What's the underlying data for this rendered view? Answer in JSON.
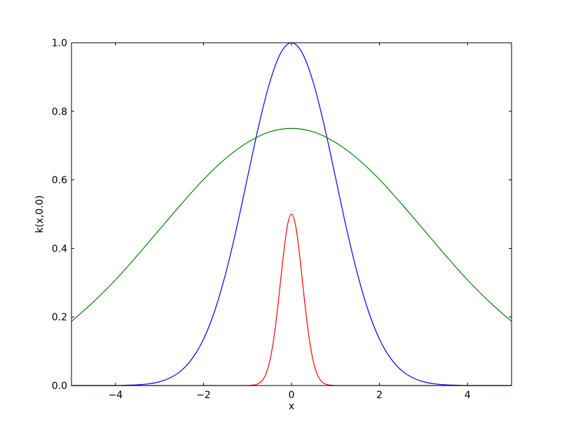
{
  "chart_data": {
    "type": "line",
    "title": "",
    "xlabel": "x",
    "ylabel": "k(x,0.0)",
    "xlim": [
      -5,
      5
    ],
    "ylim": [
      0,
      1
    ],
    "xticks": [
      -4,
      -2,
      0,
      2,
      4
    ],
    "xtick_labels": [
      "−4",
      "−2",
      "0",
      "2",
      "4"
    ],
    "yticks": [
      0,
      0.2,
      0.4,
      0.6,
      0.8,
      1.0
    ],
    "ytick_labels": [
      "0.0",
      "0.2",
      "0.4",
      "0.6",
      "0.8",
      "1.0"
    ],
    "grid": false,
    "series": [
      {
        "color": "#0000ff",
        "x": [
          -5,
          -4.75,
          -4.5,
          -4.25,
          -4,
          -3.75,
          -3.5,
          -3.25,
          -3,
          -2.75,
          -2.5,
          -2.25,
          -2,
          -1.75,
          -1.5,
          -1.25,
          -1,
          -0.75,
          -0.5,
          -0.25,
          0,
          0.25,
          0.5,
          0.75,
          1,
          1.25,
          1.5,
          1.75,
          2,
          2.25,
          2.5,
          2.75,
          3,
          3.25,
          3.5,
          3.75,
          4,
          4.25,
          4.5,
          4.75,
          5
        ],
        "y": [
          0,
          0,
          0,
          0,
          0,
          0.001,
          0.002,
          0.005,
          0.011,
          0.023,
          0.044,
          0.08,
          0.135,
          0.216,
          0.325,
          0.458,
          0.607,
          0.755,
          0.882,
          0.969,
          1,
          0.969,
          0.882,
          0.755,
          0.607,
          0.458,
          0.325,
          0.216,
          0.135,
          0.08,
          0.044,
          0.023,
          0.011,
          0.005,
          0.002,
          0.001,
          0,
          0,
          0,
          0,
          0
        ]
      },
      {
        "color": "#008000",
        "x": [
          -5,
          -4.5,
          -4,
          -3.5,
          -3,
          -2.5,
          -2,
          -1.5,
          -1,
          -0.5,
          0,
          0.5,
          1,
          1.5,
          2,
          2.5,
          3,
          3.5,
          4,
          4.5,
          5
        ],
        "y": [
          0.187,
          0.244,
          0.308,
          0.38,
          0.455,
          0.53,
          0.601,
          0.662,
          0.709,
          0.74,
          0.75,
          0.74,
          0.709,
          0.662,
          0.601,
          0.53,
          0.455,
          0.38,
          0.308,
          0.244,
          0.187
        ]
      },
      {
        "color": "#ff0000",
        "x": [
          -5,
          -1.2,
          -1,
          -0.9,
          -0.8,
          -0.7,
          -0.6,
          -0.5,
          -0.4,
          -0.3,
          -0.2,
          -0.1,
          0,
          0.1,
          0.2,
          0.3,
          0.4,
          0.5,
          0.6,
          0.7,
          0.8,
          0.9,
          1,
          1.2,
          5
        ],
        "y": [
          0,
          0,
          0,
          0.001,
          0.003,
          0.01,
          0.028,
          0.068,
          0.139,
          0.243,
          0.363,
          0.462,
          0.5,
          0.462,
          0.363,
          0.243,
          0.139,
          0.068,
          0.028,
          0.01,
          0.003,
          0.001,
          0,
          0,
          0
        ]
      }
    ]
  }
}
